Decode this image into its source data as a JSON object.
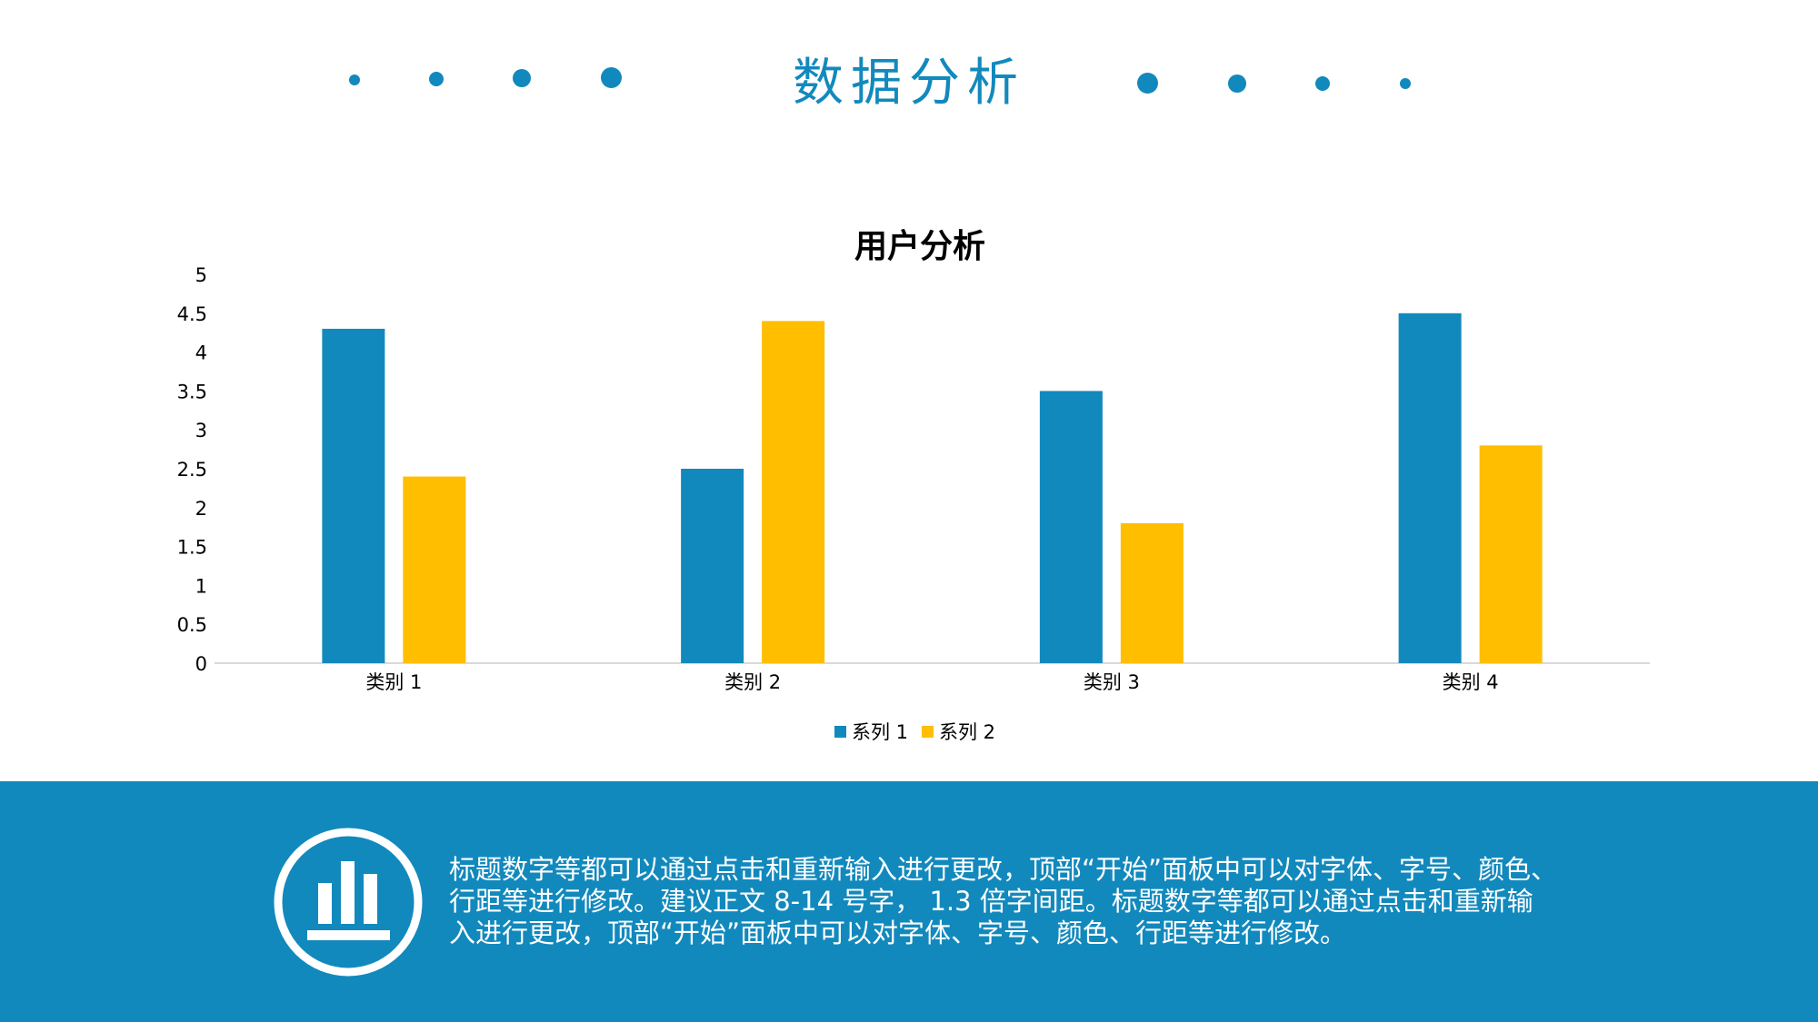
{
  "header": {
    "title": "数据分析"
  },
  "colors": {
    "accent": "#1289bd",
    "series_1": "#1289bd",
    "series_2": "#ffbe00"
  },
  "chart_data": {
    "type": "bar",
    "title": "用户分析",
    "categories": [
      "类别 1",
      "类别 2",
      "类别 3",
      "类别 4"
    ],
    "series": [
      {
        "name": "系列 1",
        "values": [
          4.3,
          2.5,
          3.5,
          4.5
        ]
      },
      {
        "name": "系列 2",
        "values": [
          2.4,
          4.4,
          1.8,
          2.8
        ]
      }
    ],
    "yticks": [
      "0",
      "0.5",
      "1",
      "1.5",
      "2",
      "2.5",
      "3",
      "3.5",
      "4",
      "4.5",
      "5"
    ],
    "ylim": [
      0,
      5
    ],
    "grid": false,
    "legend_position": "bottom"
  },
  "footer": {
    "icon": "bar-chart-icon",
    "text": "标题数字等都可以通过点击和重新输入进行更改，顶部“开始”面板中可以对字体、字号、颜色、行距等进行修改。建议正文 8-14 号字， 1.3 倍字间距。标题数字等都可以通过点击和重新输入进行更改，顶部“开始”面板中可以对字体、字号、颜色、行距等进行修改。"
  }
}
